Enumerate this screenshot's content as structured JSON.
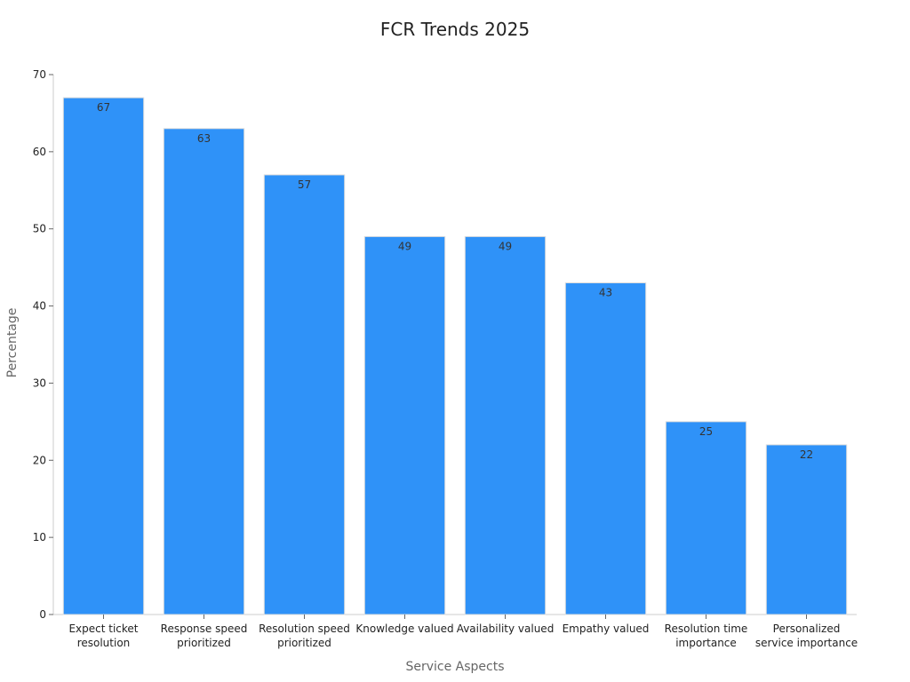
{
  "chart_data": {
    "type": "bar",
    "title": "FCR Trends 2025",
    "xlabel": "Service Aspects",
    "ylabel": "Percentage",
    "categories": [
      [
        "Expect ticket",
        "resolution"
      ],
      [
        "Response speed",
        "prioritized"
      ],
      [
        "Resolution speed",
        "prioritized"
      ],
      [
        "Knowledge valued"
      ],
      [
        "Availability valued"
      ],
      [
        "Empathy valued"
      ],
      [
        "Resolution time",
        "importance"
      ],
      [
        "Personalized",
        "service importance"
      ]
    ],
    "values": [
      67,
      63,
      57,
      49,
      49,
      43,
      25,
      22
    ],
    "ylim": [
      0,
      70
    ],
    "yticks": [
      0,
      10,
      20,
      30,
      40,
      50,
      60,
      70
    ],
    "grid": false,
    "bar_color": "#2f92f8",
    "bar_edge_color": "#dddddd"
  }
}
